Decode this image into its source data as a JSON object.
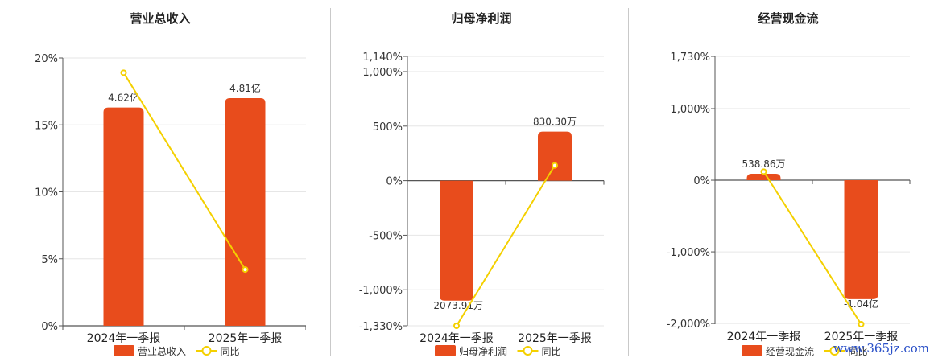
{
  "colors": {
    "bar": "#E84C1C",
    "line": "#F4D000",
    "marker_fill": "#FFFFFF",
    "grid": "#E6E6E6",
    "axis": "#555555",
    "divider": "#C9C9C9"
  },
  "legend_labels": {
    "line": "同比"
  },
  "watermark": "www.365jz.com",
  "chart_data": [
    {
      "type": "bar",
      "title": "营业总收入",
      "categories": [
        "2024年一季报",
        "2025年一季报"
      ],
      "series": [
        {
          "name": "营业总收入",
          "type": "bar",
          "labels": [
            "4.62亿",
            "4.81亿"
          ]
        },
        {
          "name": "同比",
          "type": "line",
          "values": [
            18.9,
            4.2
          ]
        }
      ],
      "y_axis": {
        "unit": "%",
        "ticks": [
          {
            "v": 0,
            "label": "0%"
          },
          {
            "v": 5,
            "label": "5%"
          },
          {
            "v": 10,
            "label": "10%"
          },
          {
            "v": 15,
            "label": "15%"
          },
          {
            "v": 20,
            "label": "20%"
          }
        ],
        "ylim": [
          0,
          20
        ]
      },
      "bar_values_on_axis": [
        16.3,
        17.0
      ],
      "legend_position": "bottom"
    },
    {
      "type": "bar",
      "title": "归母净利润",
      "categories": [
        "2024年一季报",
        "2025年一季报"
      ],
      "series": [
        {
          "name": "归母净利润",
          "type": "bar",
          "labels": [
            "-2073.91万",
            "830.30万"
          ]
        },
        {
          "name": "同比",
          "type": "line",
          "values": [
            -1330,
            140
          ]
        }
      ],
      "y_axis": {
        "unit": "%",
        "ticks": [
          {
            "v": 1140,
            "label": "1,140%"
          },
          {
            "v": 1000,
            "label": "1,000%"
          },
          {
            "v": 500,
            "label": "500%"
          },
          {
            "v": 0,
            "label": "0%"
          },
          {
            "v": -500,
            "label": "-500%"
          },
          {
            "v": -1000,
            "label": "-1,000%"
          },
          {
            "v": -1330,
            "label": "-1,330%"
          }
        ],
        "ylim": [
          -1330,
          1140
        ]
      },
      "bar_values_on_axis": [
        -1100,
        450
      ],
      "legend_position": "bottom"
    },
    {
      "type": "bar",
      "title": "经营现金流",
      "categories": [
        "2024年一季报",
        "2025年一季报"
      ],
      "series": [
        {
          "name": "经营现金流",
          "type": "bar",
          "labels": [
            "538.86万",
            "-1.04亿"
          ]
        },
        {
          "name": "同比",
          "type": "line",
          "values": [
            120,
            -2010
          ]
        }
      ],
      "y_axis": {
        "unit": "%",
        "ticks": [
          {
            "v": 1730,
            "label": "1,730%"
          },
          {
            "v": 1000,
            "label": "1,000%"
          },
          {
            "v": 0,
            "label": "0%"
          },
          {
            "v": -1000,
            "label": "-1,000%"
          },
          {
            "v": -2000,
            "label": "-2,000%"
          }
        ],
        "ylim": [
          -2010,
          1730
        ]
      },
      "bar_values_on_axis": [
        90,
        -1660
      ],
      "legend_position": "bottom"
    }
  ]
}
